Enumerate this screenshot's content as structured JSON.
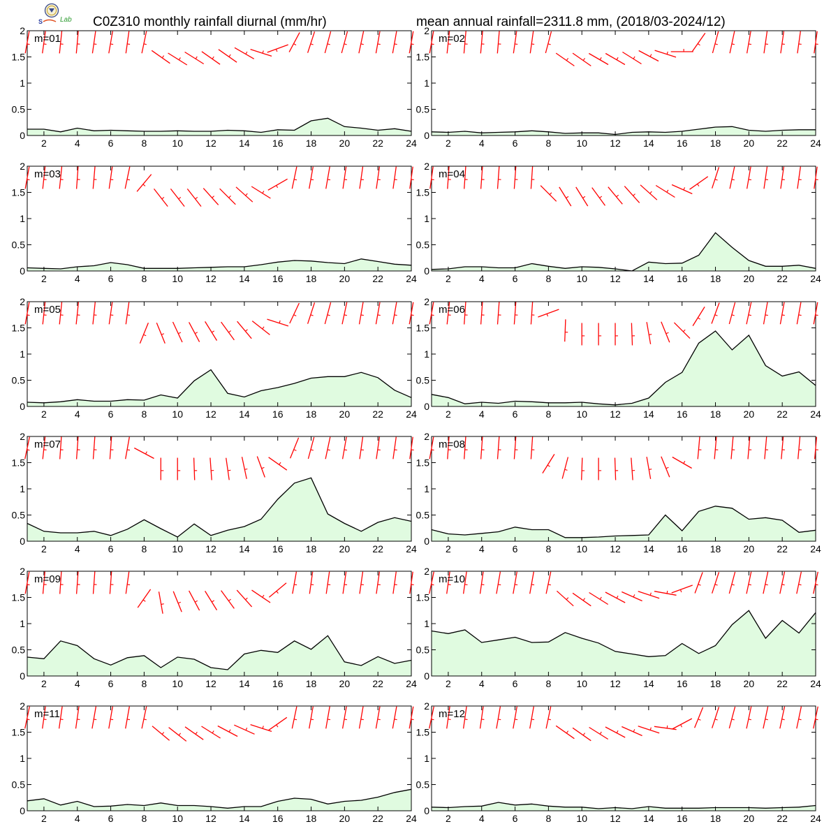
{
  "title_left": "C0Z310 monthly rainfall diurnal (mm/hr)",
  "title_right": "mean annual rainfall=2311.8 mm, (2018/03-2024/12)",
  "logo_text": "Lab",
  "colors": {
    "fill": "#e0fbe0",
    "line": "#000000",
    "wind": "#ff0000"
  },
  "chart_data": {
    "type": "area",
    "x": [
      1,
      2,
      3,
      4,
      5,
      6,
      7,
      8,
      9,
      10,
      11,
      12,
      13,
      14,
      15,
      16,
      17,
      18,
      19,
      20,
      21,
      22,
      23,
      24
    ],
    "xticks": [
      2,
      4,
      6,
      8,
      10,
      12,
      14,
      16,
      18,
      20,
      22,
      24
    ],
    "yticks": [
      {
        "value": 0,
        "label": "0"
      },
      {
        "value": 0.5,
        "label": "0.5"
      },
      {
        "value": 1,
        "label": "1"
      },
      {
        "value": 1.5,
        "label": "1.5"
      },
      {
        "value": 2,
        "label": "2"
      }
    ],
    "ylim": [
      0,
      2
    ],
    "xlim": [
      1,
      24
    ],
    "panels": [
      {
        "label": "m=01",
        "values": [
          0.12,
          0.12,
          0.07,
          0.14,
          0.09,
          0.1,
          0.09,
          0.08,
          0.08,
          0.09,
          0.08,
          0.08,
          0.1,
          0.09,
          0.06,
          0.11,
          0.1,
          0.28,
          0.33,
          0.17,
          0.14,
          0.1,
          0.13,
          0.08
        ],
        "wind_y": [
          1.78,
          1.78,
          1.78,
          1.78,
          1.78,
          1.78,
          1.78,
          1.78,
          1.5,
          1.46,
          1.48,
          1.48,
          1.52,
          1.57,
          1.58,
          1.66,
          1.78,
          1.78,
          1.78,
          1.78,
          1.78,
          1.78,
          1.78,
          1.78
        ],
        "wind_angle": [
          -10,
          -8,
          -6,
          -5,
          -8,
          -10,
          -8,
          -12,
          55,
          58,
          58,
          55,
          55,
          60,
          72,
          -70,
          -28,
          -18,
          -15,
          -15,
          -12,
          -10,
          -10,
          -10
        ]
      },
      {
        "label": "m=02",
        "values": [
          0.07,
          0.06,
          0.08,
          0.05,
          0.06,
          0.07,
          0.09,
          0.07,
          0.04,
          0.05,
          0.05,
          0.02,
          0.06,
          0.07,
          0.06,
          0.08,
          0.12,
          0.16,
          0.17,
          0.1,
          0.08,
          0.1,
          0.11,
          0.11
        ],
        "wind_y": [
          1.78,
          1.78,
          1.78,
          1.78,
          1.78,
          1.78,
          1.78,
          1.78,
          1.45,
          1.45,
          1.46,
          1.46,
          1.48,
          1.52,
          1.56,
          1.6,
          1.78,
          1.78,
          1.78,
          1.78,
          1.78,
          1.78,
          1.78,
          1.78
        ],
        "wind_angle": [
          -10,
          -6,
          -5,
          -5,
          -5,
          -8,
          -8,
          -15,
          55,
          55,
          60,
          60,
          58,
          62,
          72,
          90,
          -35,
          -15,
          -12,
          -10,
          -8,
          -8,
          -8,
          -8
        ]
      },
      {
        "label": "m=03",
        "values": [
          0.06,
          0.05,
          0.04,
          0.08,
          0.1,
          0.16,
          0.12,
          0.05,
          0.05,
          0.05,
          0.06,
          0.07,
          0.08,
          0.08,
          0.12,
          0.17,
          0.2,
          0.19,
          0.16,
          0.14,
          0.23,
          0.18,
          0.13,
          0.11
        ],
        "wind_y": [
          1.78,
          1.78,
          1.78,
          1.78,
          1.78,
          1.78,
          1.78,
          1.68,
          1.4,
          1.4,
          1.4,
          1.42,
          1.42,
          1.46,
          1.5,
          1.65,
          1.78,
          1.78,
          1.78,
          1.78,
          1.78,
          1.78,
          1.78,
          1.78
        ],
        "wind_angle": [
          -10,
          -6,
          -6,
          -4,
          -5,
          -8,
          -12,
          -40,
          38,
          38,
          38,
          42,
          45,
          48,
          58,
          -60,
          -12,
          -10,
          -10,
          -8,
          -8,
          -8,
          -8,
          -8
        ]
      },
      {
        "label": "m=04",
        "values": [
          0.03,
          0.04,
          0.08,
          0.08,
          0.06,
          0.06,
          0.14,
          0.09,
          0.05,
          0.08,
          0.07,
          0.04,
          0.0,
          0.17,
          0.14,
          0.15,
          0.3,
          0.73,
          0.45,
          0.2,
          0.09,
          0.09,
          0.11,
          0.05
        ],
        "wind_y": [
          1.78,
          1.78,
          1.78,
          1.78,
          1.78,
          1.78,
          1.78,
          1.48,
          1.42,
          1.42,
          1.42,
          1.44,
          1.46,
          1.5,
          1.52,
          1.56,
          1.68,
          1.78,
          1.78,
          1.78,
          1.78,
          1.78,
          1.78,
          1.78
        ],
        "wind_angle": [
          -8,
          -4,
          -4,
          -4,
          -4,
          -4,
          -4,
          45,
          32,
          32,
          36,
          40,
          42,
          48,
          58,
          66,
          -55,
          -18,
          -12,
          -10,
          -8,
          -8,
          -8,
          -8
        ]
      },
      {
        "label": "m=05",
        "values": [
          0.08,
          0.07,
          0.09,
          0.13,
          0.1,
          0.1,
          0.13,
          0.12,
          0.22,
          0.16,
          0.49,
          0.7,
          0.25,
          0.18,
          0.3,
          0.36,
          0.44,
          0.54,
          0.57,
          0.57,
          0.65,
          0.55,
          0.31,
          0.17
        ],
        "wind_y": [
          1.78,
          1.78,
          1.78,
          1.78,
          1.78,
          1.78,
          1.78,
          1.4,
          1.4,
          1.42,
          1.42,
          1.44,
          1.44,
          1.46,
          1.5,
          1.6,
          1.78,
          1.78,
          1.78,
          1.78,
          1.78,
          1.78,
          1.78,
          1.78
        ],
        "wind_angle": [
          -10,
          -6,
          -6,
          -6,
          -6,
          -8,
          -8,
          -22,
          22,
          25,
          28,
          32,
          36,
          40,
          52,
          72,
          -25,
          -18,
          -15,
          -12,
          -10,
          -10,
          -10,
          -10
        ]
      },
      {
        "label": "m=06",
        "values": [
          0.23,
          0.17,
          0.05,
          0.08,
          0.06,
          0.1,
          0.09,
          0.07,
          0.07,
          0.08,
          0.05,
          0.03,
          0.06,
          0.16,
          0.46,
          0.65,
          1.21,
          1.44,
          1.08,
          1.36,
          0.78,
          0.58,
          0.66,
          0.4
        ],
        "wind_y": [
          1.78,
          1.78,
          1.78,
          1.78,
          1.78,
          1.78,
          1.78,
          1.78,
          1.45,
          1.38,
          1.38,
          1.38,
          1.38,
          1.4,
          1.42,
          1.45,
          1.72,
          1.78,
          1.78,
          1.78,
          1.78,
          1.78,
          1.78,
          1.78
        ],
        "wind_angle": [
          -10,
          -6,
          -4,
          -4,
          -4,
          -4,
          -4,
          -70,
          -2,
          0,
          0,
          0,
          2,
          10,
          22,
          45,
          -32,
          -20,
          -15,
          -12,
          -10,
          -10,
          -10,
          -10
        ]
      },
      {
        "label": "m=07",
        "values": [
          0.34,
          0.19,
          0.16,
          0.16,
          0.19,
          0.11,
          0.23,
          0.41,
          0.24,
          0.08,
          0.33,
          0.11,
          0.21,
          0.28,
          0.42,
          0.8,
          1.11,
          1.21,
          0.52,
          0.34,
          0.19,
          0.36,
          0.45,
          0.38
        ],
        "wind_y": [
          1.78,
          1.78,
          1.78,
          1.78,
          1.78,
          1.78,
          1.78,
          1.68,
          1.38,
          1.38,
          1.38,
          1.38,
          1.38,
          1.4,
          1.42,
          1.48,
          1.78,
          1.78,
          1.78,
          1.78,
          1.78,
          1.78,
          1.78,
          1.78
        ],
        "wind_angle": [
          -12,
          -6,
          -4,
          -4,
          -4,
          -4,
          -10,
          62,
          0,
          0,
          2,
          4,
          8,
          12,
          20,
          55,
          -22,
          -15,
          -12,
          -10,
          -8,
          -8,
          -8,
          -8
        ]
      },
      {
        "label": "m=08",
        "values": [
          0.22,
          0.14,
          0.12,
          0.15,
          0.18,
          0.27,
          0.22,
          0.22,
          0.07,
          0.07,
          0.08,
          0.1,
          0.11,
          0.12,
          0.5,
          0.2,
          0.57,
          0.67,
          0.63,
          0.42,
          0.45,
          0.4,
          0.17,
          0.21
        ],
        "wind_y": [
          1.78,
          1.78,
          1.78,
          1.78,
          1.78,
          1.78,
          1.78,
          1.48,
          1.4,
          1.38,
          1.38,
          1.38,
          1.38,
          1.4,
          1.42,
          1.5,
          1.78,
          1.78,
          1.78,
          1.78,
          1.78,
          1.78,
          1.78,
          1.78
        ],
        "wind_angle": [
          -10,
          -4,
          -4,
          -4,
          -4,
          -4,
          -4,
          -32,
          -15,
          -2,
          0,
          2,
          4,
          10,
          22,
          60,
          -5,
          -5,
          -5,
          -5,
          -5,
          -5,
          -5,
          -5
        ]
      },
      {
        "label": "m=09",
        "values": [
          0.36,
          0.33,
          0.67,
          0.58,
          0.33,
          0.21,
          0.35,
          0.39,
          0.16,
          0.36,
          0.32,
          0.16,
          0.12,
          0.42,
          0.49,
          0.45,
          0.67,
          0.51,
          0.77,
          0.27,
          0.2,
          0.37,
          0.24,
          0.3
        ],
        "wind_y": [
          1.78,
          1.78,
          1.78,
          1.78,
          1.78,
          1.78,
          1.78,
          1.48,
          1.4,
          1.42,
          1.44,
          1.44,
          1.46,
          1.48,
          1.52,
          1.64,
          1.78,
          1.78,
          1.78,
          1.78,
          1.78,
          1.78,
          1.78,
          1.78
        ],
        "wind_angle": [
          -10,
          -5,
          -4,
          -4,
          -4,
          -4,
          -8,
          -35,
          10,
          22,
          28,
          32,
          36,
          42,
          56,
          -50,
          -10,
          -8,
          -8,
          -8,
          -8,
          -8,
          -8,
          -8
        ]
      },
      {
        "label": "m=10",
        "values": [
          0.86,
          0.81,
          0.88,
          0.64,
          0.69,
          0.74,
          0.64,
          0.65,
          0.83,
          0.72,
          0.63,
          0.47,
          0.42,
          0.37,
          0.39,
          0.62,
          0.43,
          0.58,
          0.98,
          1.25,
          0.72,
          1.06,
          0.82,
          1.21
        ],
        "wind_y": [
          1.78,
          1.78,
          1.78,
          1.78,
          1.78,
          1.78,
          1.78,
          1.78,
          1.48,
          1.46,
          1.48,
          1.5,
          1.52,
          1.55,
          1.58,
          1.66,
          1.78,
          1.78,
          1.78,
          1.78,
          1.78,
          1.78,
          1.78,
          1.78
        ],
        "wind_angle": [
          -12,
          -8,
          -8,
          -8,
          -10,
          -10,
          -10,
          -12,
          48,
          55,
          58,
          62,
          66,
          72,
          80,
          -70,
          -20,
          -18,
          -15,
          -12,
          -12,
          -12,
          -12,
          -12
        ]
      },
      {
        "label": "m=11",
        "values": [
          0.19,
          0.23,
          0.11,
          0.18,
          0.08,
          0.09,
          0.12,
          0.1,
          0.15,
          0.1,
          0.1,
          0.08,
          0.05,
          0.08,
          0.08,
          0.18,
          0.24,
          0.22,
          0.13,
          0.18,
          0.2,
          0.26,
          0.35,
          0.41
        ],
        "wind_y": [
          1.78,
          1.78,
          1.78,
          1.78,
          1.78,
          1.78,
          1.78,
          1.78,
          1.48,
          1.46,
          1.48,
          1.5,
          1.52,
          1.55,
          1.58,
          1.66,
          1.78,
          1.78,
          1.78,
          1.78,
          1.78,
          1.78,
          1.78,
          1.78
        ],
        "wind_angle": [
          -12,
          -8,
          -8,
          -8,
          -10,
          -10,
          -10,
          -12,
          50,
          52,
          55,
          58,
          62,
          66,
          72,
          -55,
          -12,
          -10,
          -10,
          -10,
          -10,
          -10,
          -10,
          -10
        ]
      },
      {
        "label": "m=12",
        "values": [
          0.07,
          0.06,
          0.08,
          0.09,
          0.16,
          0.11,
          0.13,
          0.09,
          0.07,
          0.07,
          0.04,
          0.06,
          0.04,
          0.08,
          0.05,
          0.05,
          0.05,
          0.06,
          0.06,
          0.06,
          0.05,
          0.06,
          0.07,
          0.1
        ],
        "wind_y": [
          1.78,
          1.78,
          1.78,
          1.78,
          1.78,
          1.78,
          1.78,
          1.78,
          1.5,
          1.46,
          1.48,
          1.5,
          1.52,
          1.55,
          1.58,
          1.66,
          1.78,
          1.78,
          1.78,
          1.78,
          1.78,
          1.78,
          1.78,
          1.78
        ],
        "wind_angle": [
          -12,
          -8,
          -8,
          -8,
          -10,
          -10,
          -10,
          -12,
          55,
          55,
          58,
          62,
          66,
          72,
          82,
          -62,
          -22,
          -18,
          -15,
          -12,
          -12,
          -12,
          -12,
          -12
        ]
      }
    ]
  }
}
